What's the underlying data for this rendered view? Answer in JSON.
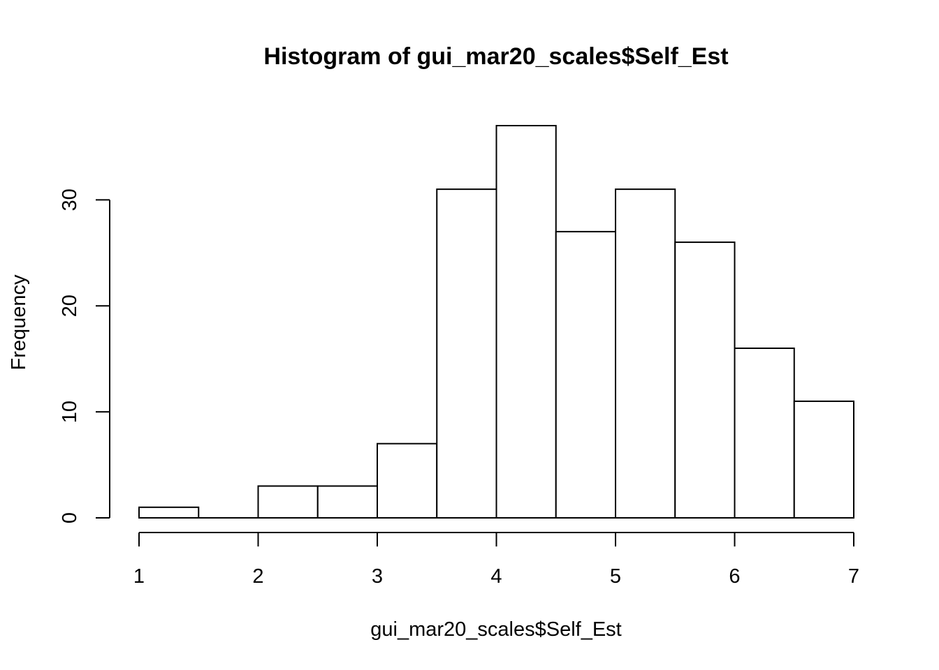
{
  "chart_data": {
    "type": "bar",
    "subtype": "histogram",
    "title": "Histogram of gui_mar20_scales$Self_Est",
    "xlabel": "gui_mar20_scales$Self_Est",
    "ylabel": "Frequency",
    "bin_edges": [
      1,
      1.5,
      2,
      2.5,
      3,
      3.5,
      4,
      4.5,
      5,
      5.5,
      6,
      6.5,
      7
    ],
    "values": [
      1,
      0,
      3,
      3,
      7,
      31,
      37,
      27,
      31,
      26,
      16,
      11
    ],
    "xlim": [
      1,
      7
    ],
    "ylim": [
      0,
      37
    ],
    "x_ticks": [
      1,
      2,
      3,
      4,
      5,
      6,
      7
    ],
    "x_tick_labels": [
      "1",
      "2",
      "3",
      "4",
      "5",
      "6",
      "7"
    ],
    "y_ticks": [
      0,
      10,
      20,
      30
    ],
    "y_tick_labels": [
      "0",
      "10",
      "20",
      "30"
    ],
    "grid": false,
    "bar_fill": "#ffffff",
    "bar_stroke": "#000000"
  }
}
